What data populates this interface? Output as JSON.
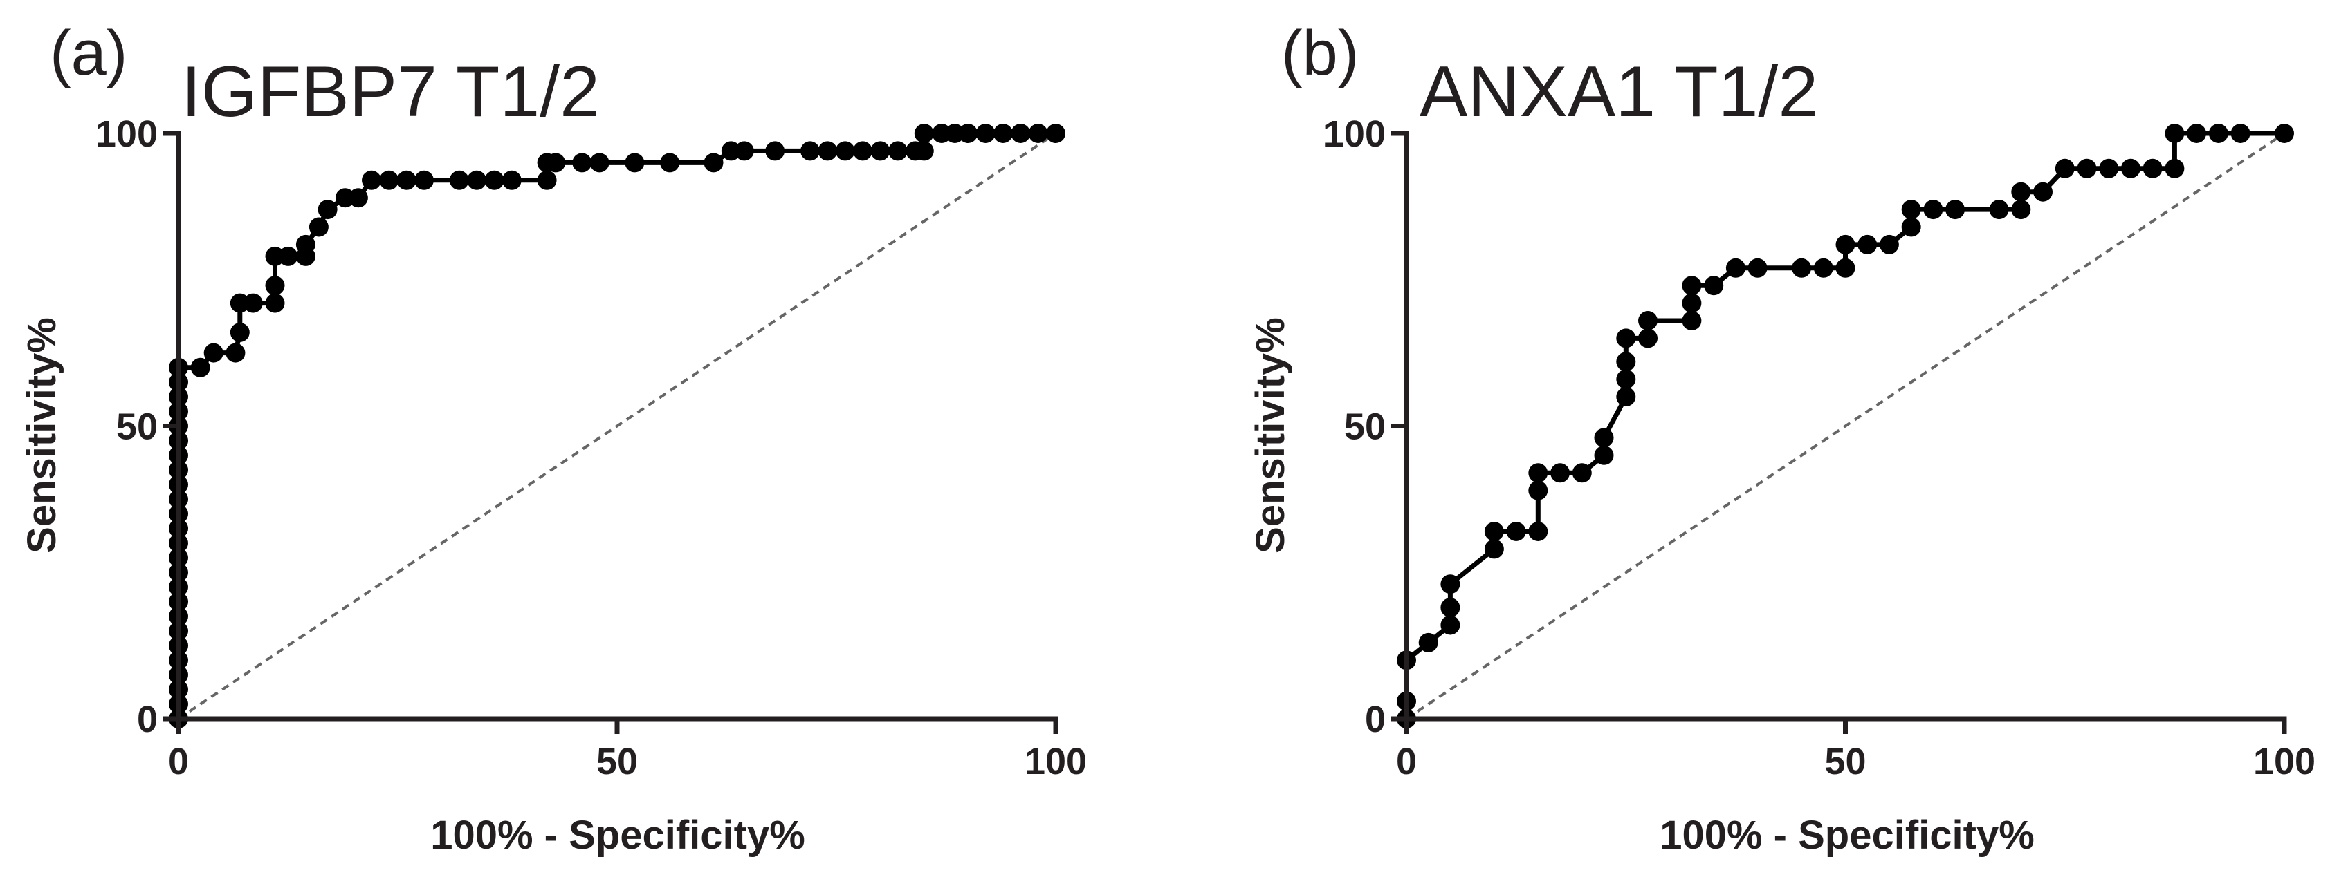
{
  "chart_data": [
    {
      "type": "line",
      "panel": "(a)",
      "title": "IGFBP7  T1/2",
      "xlabel": "100% - Specificity%",
      "ylabel": "Sensitivity%",
      "xlim": [
        0,
        100
      ],
      "ylim": [
        0,
        100
      ],
      "xticks": [
        "0",
        "50",
        "100"
      ],
      "yticks": [
        "0",
        "50",
        "100"
      ],
      "reference_line": "diagonal dashed (chance)",
      "x": [
        0,
        0,
        0,
        0,
        0,
        0,
        0,
        0,
        0,
        0,
        0,
        0,
        0,
        0,
        0,
        0,
        0,
        0,
        0,
        0,
        0,
        0,
        0,
        0,
        0,
        2.5,
        4,
        6.5,
        7,
        7,
        8.5,
        11,
        11,
        11,
        12.5,
        14.5,
        14.5,
        16,
        17,
        19,
        20.5,
        22,
        24,
        26,
        28,
        32,
        34,
        36,
        38,
        42,
        42,
        43,
        46,
        48,
        52,
        56,
        61,
        63,
        64.5,
        68,
        72,
        74,
        76,
        78,
        80,
        82,
        84,
        85,
        85,
        87,
        88.5,
        90,
        92,
        94,
        96,
        98,
        100
      ],
      "y": [
        0,
        2.5,
        5,
        7.5,
        10,
        12.5,
        15,
        17.5,
        20,
        22.5,
        25,
        27.5,
        30,
        32.5,
        35,
        37.5,
        40,
        42.5,
        45,
        47.5,
        50,
        52.5,
        55,
        57.5,
        60,
        60,
        62.5,
        62.5,
        66,
        71,
        71,
        71,
        74,
        79,
        79,
        79,
        81,
        84,
        87,
        89,
        89,
        92,
        92,
        92,
        92,
        92,
        92,
        92,
        92,
        92,
        95,
        95,
        95,
        95,
        95,
        95,
        95,
        97,
        97,
        97,
        97,
        97,
        97,
        97,
        97,
        97,
        97,
        97,
        100,
        100,
        100,
        100,
        100,
        100,
        100,
        100,
        100
      ]
    },
    {
      "type": "line",
      "panel": "(b)",
      "title": "ANXA1  T1/2",
      "xlabel": "100% - Specificity%",
      "ylabel": "Sensitivity%",
      "xlim": [
        0,
        100
      ],
      "ylim": [
        0,
        100
      ],
      "xticks": [
        "0",
        "50",
        "100"
      ],
      "yticks": [
        "0",
        "50",
        "100"
      ],
      "reference_line": "diagonal dashed (chance)",
      "x": [
        0,
        0,
        0,
        2.5,
        5,
        5,
        5,
        10,
        10,
        12.5,
        15,
        15,
        15,
        17.5,
        20,
        22.5,
        22.5,
        25,
        25,
        25,
        25,
        27.5,
        27.5,
        32.5,
        32.5,
        32.5,
        35,
        37.5,
        40,
        45,
        47.5,
        50,
        50,
        52.5,
        55,
        57.5,
        57.5,
        60,
        62.5,
        67.5,
        70,
        70,
        72.5,
        75,
        77.5,
        80,
        82.5,
        85,
        87.5,
        87.5,
        90,
        92.5,
        95,
        100
      ],
      "y": [
        0,
        3,
        10,
        13,
        16,
        19,
        23,
        29,
        32,
        32,
        32,
        39,
        42,
        42,
        42,
        45,
        48,
        55,
        58,
        61,
        65,
        65,
        68,
        68,
        71,
        74,
        74,
        77,
        77,
        77,
        77,
        77,
        81,
        81,
        81,
        84,
        87,
        87,
        87,
        87,
        87,
        90,
        90,
        94,
        94,
        94,
        94,
        94,
        94,
        100,
        100,
        100,
        100,
        100
      ]
    }
  ]
}
